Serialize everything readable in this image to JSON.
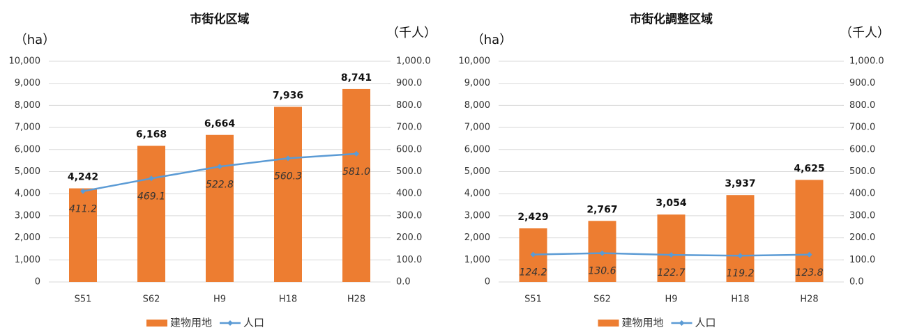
{
  "chart_data": [
    {
      "type": "combo",
      "title": "市街化区域",
      "ylabel": "（ha）",
      "y2label": "（千人）",
      "categories": [
        "S51",
        "S62",
        "H9",
        "H18",
        "H28"
      ],
      "series": [
        {
          "name": "建物用地",
          "type": "bar",
          "color": "#ED7D31",
          "axis": "y",
          "values": [
            4242,
            6168,
            6664,
            7936,
            8741
          ],
          "value_labels": [
            "4,242",
            "6,168",
            "6,664",
            "7,936",
            "8,741"
          ]
        },
        {
          "name": "人口",
          "type": "line",
          "color": "#5B9BD5",
          "axis": "y2",
          "values": [
            411.2,
            469.1,
            522.8,
            560.3,
            581.0
          ],
          "value_labels": [
            "411.2",
            "469.1",
            "522.8",
            "560.3",
            "581.0"
          ]
        }
      ],
      "ylim": [
        0,
        10000
      ],
      "yticks": [
        0,
        {
          "value": 1000,
          "label": "1,000"
        },
        {
          "value": 2000,
          "label": "2,000"
        },
        {
          "value": 3000,
          "label": "3,000"
        },
        {
          "value": 4000,
          "label": "4,000"
        },
        {
          "value": 5000,
          "label": "5,000"
        },
        {
          "value": 6000,
          "label": "6,000"
        },
        {
          "value": 7000,
          "label": "7,000"
        },
        {
          "value": 8000,
          "label": "8,000"
        },
        {
          "value": 9000,
          "label": "9,000"
        },
        {
          "value": 10000,
          "label": "10,000"
        }
      ],
      "y2lim": [
        0,
        1000
      ],
      "y2ticks": [
        {
          "value": 0,
          "label": "0.0"
        },
        {
          "value": 100,
          "label": "100.0"
        },
        {
          "value": 200,
          "label": "200.0"
        },
        {
          "value": 300,
          "label": "300.0"
        },
        {
          "value": 400,
          "label": "400.0"
        },
        {
          "value": 500,
          "label": "500.0"
        },
        {
          "value": 600,
          "label": "600.0"
        },
        {
          "value": 700,
          "label": "700.0"
        },
        {
          "value": 800,
          "label": "800.0"
        },
        {
          "value": 900,
          "label": "900.0"
        },
        {
          "value": 1000,
          "label": "1,000.0"
        }
      ],
      "grid": true,
      "legend": "bottom"
    },
    {
      "type": "combo",
      "title": "市街化調整区域",
      "ylabel": "（ha）",
      "y2label": "（千人）",
      "categories": [
        "S51",
        "S62",
        "H9",
        "H18",
        "H28"
      ],
      "series": [
        {
          "name": "建物用地",
          "type": "bar",
          "color": "#ED7D31",
          "axis": "y",
          "values": [
            2429,
            2767,
            3054,
            3937,
            4625
          ],
          "value_labels": [
            "2,429",
            "2,767",
            "3,054",
            "3,937",
            "4,625"
          ]
        },
        {
          "name": "人口",
          "type": "line",
          "color": "#5B9BD5",
          "axis": "y2",
          "values": [
            124.2,
            130.6,
            122.7,
            119.2,
            123.8
          ]
        }
      ],
      "ylim": [
        0,
        10000
      ],
      "yticks": [
        0,
        {
          "value": 1000,
          "label": "1,000"
        },
        {
          "value": 2000,
          "label": "2,000"
        },
        {
          "value": 3000,
          "label": "3,000"
        },
        {
          "value": 4000,
          "label": "4,000"
        },
        {
          "value": 5000,
          "label": "5,000"
        },
        {
          "value": 6000,
          "label": "6,000"
        },
        {
          "value": 7000,
          "label": "7,000"
        },
        {
          "value": 8000,
          "label": "8,000"
        },
        {
          "value": 9000,
          "label": "9,000"
        },
        {
          "value": 10000,
          "label": "10,000"
        }
      ],
      "y2lim": [
        0,
        1000
      ],
      "y2ticks": [
        {
          "value": 0,
          "label": "0.0"
        },
        {
          "value": 100,
          "label": "100.0"
        },
        {
          "value": 200,
          "label": "200.0"
        },
        {
          "value": 300,
          "label": "300.0"
        },
        {
          "value": 400,
          "label": "400.0"
        },
        {
          "value": 500,
          "label": "500.0"
        },
        {
          "value": 600,
          "label": "600.0"
        },
        {
          "value": 700,
          "label": "700.0"
        },
        {
          "value": 800,
          "label": "800.0"
        },
        {
          "value": 900,
          "label": "900.0"
        },
        {
          "value": 1000,
          "label": "1,000.0"
        }
      ],
      "grid": true,
      "legend": "bottom"
    }
  ]
}
